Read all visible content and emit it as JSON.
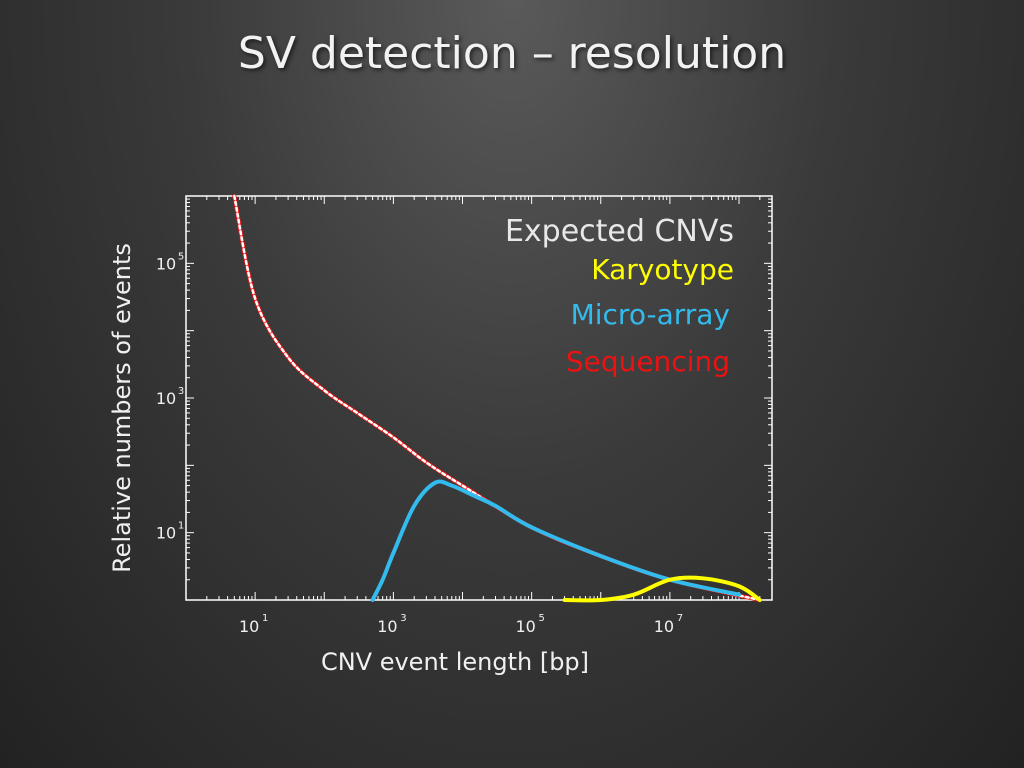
{
  "slide": {
    "title": "SV detection – resolution"
  },
  "colors": {
    "expected": "#ffffff",
    "karyotype": "#ffff00",
    "microarray": "#33bbee",
    "sequencing": "#ee1111",
    "axes": "#ffffff",
    "text": "#f0f0f0"
  },
  "chart_data": {
    "type": "line",
    "xlabel": "CNV event length [bp]",
    "ylabel": "Relative numbers of events",
    "xscale": "log",
    "yscale": "log",
    "xlim": [
      1,
      300000000
    ],
    "ylim": [
      1,
      1000000
    ],
    "xticks": [
      {
        "value": 10,
        "base": "10",
        "exp": "1"
      },
      {
        "value": 1000,
        "base": "10",
        "exp": "3"
      },
      {
        "value": 100000,
        "base": "10",
        "exp": "5"
      },
      {
        "value": 10000000,
        "base": "10",
        "exp": "7"
      }
    ],
    "yticks": [
      {
        "value": 10,
        "base": "10",
        "exp": "1"
      },
      {
        "value": 1000,
        "base": "10",
        "exp": "3"
      },
      {
        "value": 100000,
        "base": "10",
        "exp": "5"
      }
    ],
    "legend": {
      "placement": "top-right",
      "title": "Expected CNVs",
      "entries": [
        "Karyotype",
        "Micro-array",
        "Sequencing"
      ]
    },
    "series": [
      {
        "name": "Expected CNVs",
        "style": "dotted",
        "x": [
          5,
          10,
          30,
          100,
          300,
          1000,
          3000,
          10000,
          100000,
          1000000,
          10000000,
          200000000
        ],
        "y": [
          1000000,
          30000,
          4000,
          1300,
          600,
          260,
          110,
          50,
          12,
          4.5,
          2,
          1
        ]
      },
      {
        "name": "Sequencing",
        "style": "solid",
        "x": [
          5,
          10,
          30,
          100,
          300,
          1000,
          3000,
          10000,
          100000,
          1000000,
          10000000,
          200000000
        ],
        "y": [
          1000000,
          30000,
          4000,
          1300,
          600,
          260,
          110,
          50,
          12,
          4.5,
          2,
          1
        ]
      },
      {
        "name": "Micro-array",
        "style": "solid",
        "x": [
          500,
          700,
          1000,
          2000,
          4000,
          7000,
          15000,
          30000,
          100000,
          1000000,
          10000000,
          100000000
        ],
        "y": [
          1,
          2,
          5,
          25,
          55,
          50,
          35,
          25,
          12,
          4.5,
          2,
          1.2
        ]
      },
      {
        "name": "Karyotype",
        "style": "solid",
        "x": [
          300000,
          1000000,
          3000000,
          10000000,
          30000000,
          100000000,
          200000000
        ],
        "y": [
          1,
          1,
          1.2,
          2,
          2.1,
          1.6,
          1
        ]
      }
    ]
  }
}
